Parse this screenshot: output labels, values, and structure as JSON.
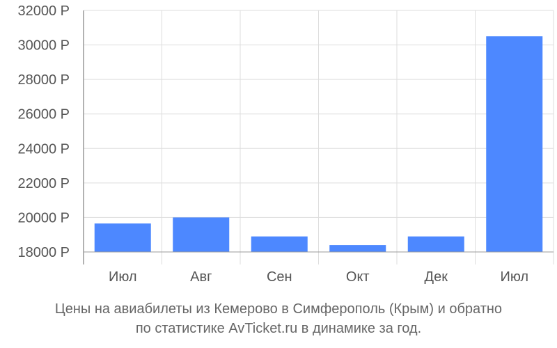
{
  "chart_data": {
    "type": "bar",
    "categories": [
      "Июл",
      "Авг",
      "Сен",
      "Окт",
      "Дек",
      "Июл"
    ],
    "values": [
      19650,
      20000,
      18900,
      18400,
      18900,
      30500
    ],
    "ylim": [
      18000,
      32000
    ],
    "y_ticks": [
      18000,
      20000,
      22000,
      24000,
      26000,
      28000,
      30000,
      32000
    ],
    "y_tick_suffix": " Р",
    "grid": true,
    "bar_color": "#4d88ff",
    "grid_color": "#dddddd",
    "axis_color": "#999999",
    "title": "",
    "xlabel": "",
    "ylabel": ""
  },
  "caption": {
    "line1": "Цены на авиабилеты из Кемерово в Симферополь (Крым) и обратно",
    "line2": "по статистике AvTicket.ru в динамике за год."
  }
}
